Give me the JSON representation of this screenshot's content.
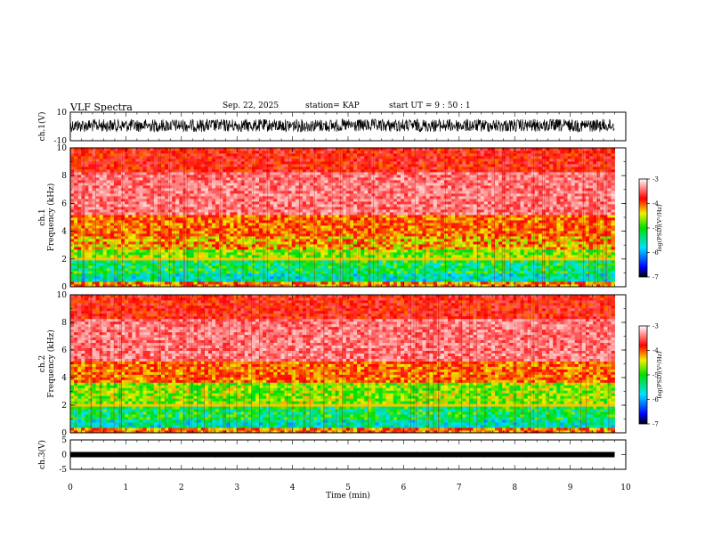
{
  "header": {
    "title": "VLF Spectra",
    "date": "Sep. 22, 2025",
    "station": "station= KAP",
    "start": "start  UT =   9  : 50 : 1"
  },
  "chart_data": [
    {
      "type": "line",
      "name": "ch1-waveform",
      "ylabel": "ch.1(V)",
      "ylim": [
        -10,
        10
      ],
      "yticks": [
        "10",
        "-10"
      ],
      "xlim": [
        0,
        10
      ]
    },
    {
      "type": "heatmap",
      "name": "ch1-spectrogram",
      "ylabel_channel": "ch.1",
      "ylabel": "Frequency (kHz)",
      "ylim": [
        0,
        10
      ],
      "yticks": [
        "0",
        "2",
        "4",
        "6",
        "8",
        "10"
      ],
      "xlim": [
        0,
        10
      ],
      "data_extent_min": 9.8,
      "colorbar": {
        "label": "log(PSD)(V²/Hz)",
        "range": [
          -7,
          -3
        ],
        "ticks": [
          "-3",
          "-4",
          "-5",
          "-6",
          "-7"
        ]
      }
    },
    {
      "type": "heatmap",
      "name": "ch2-spectrogram",
      "ylabel_channel": "ch.2",
      "ylabel": "Frequency (kHz)",
      "ylim": [
        0,
        10
      ],
      "yticks": [
        "0",
        "2",
        "4",
        "6",
        "8",
        "10"
      ],
      "xlim": [
        0,
        10
      ],
      "data_extent_min": 9.8,
      "colorbar": {
        "label": "log(PSD)(V²/Hz)",
        "range": [
          -7,
          -3
        ],
        "ticks": [
          "-3",
          "-4",
          "-5",
          "-6",
          "-7"
        ]
      }
    },
    {
      "type": "line",
      "name": "ch3-waveform",
      "ylabel": "ch.3(V)",
      "ylim": [
        -5,
        5
      ],
      "yticks": [
        "5",
        "0",
        "-5"
      ],
      "xlim": [
        0,
        10
      ],
      "xlabel": "Time  (min)",
      "xticks": [
        "0",
        "1",
        "2",
        "3",
        "4",
        "5",
        "6",
        "7",
        "8",
        "9",
        "10"
      ]
    }
  ],
  "colors": {
    "ink": "#000000",
    "background": "#ffffff"
  }
}
